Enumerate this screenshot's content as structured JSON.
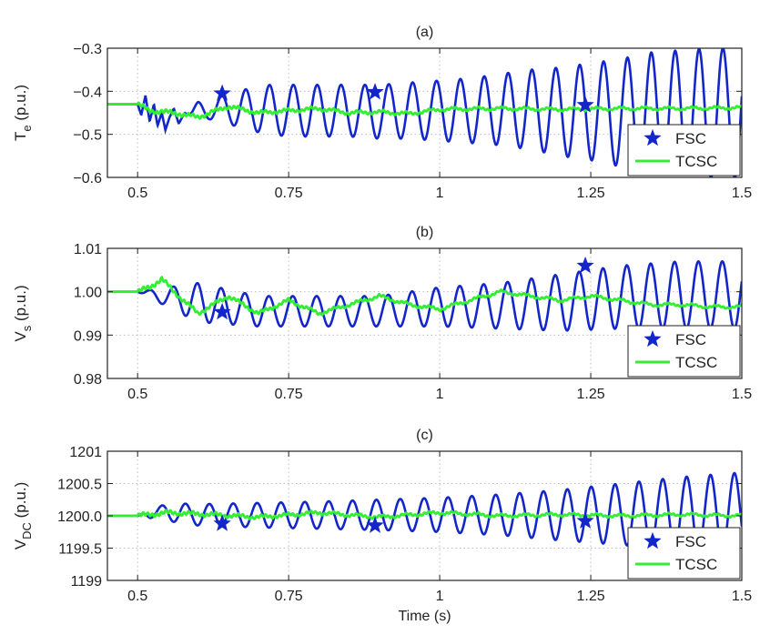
{
  "colors": {
    "fsc": "#1326c9",
    "tcsc": "#33ee33",
    "axis": "#222222",
    "grid": "#bdbdbd"
  },
  "chart_data": [
    {
      "type": "line",
      "title": "(a)",
      "ylabel_main": "T",
      "ylabel_sub": "e",
      "ylabel_rest": " (p.u.)",
      "xlim": [
        0.45,
        1.5
      ],
      "ylim": [
        -0.6,
        -0.3
      ],
      "xticks": [
        0.5,
        0.75,
        1,
        1.25,
        1.5
      ],
      "xtick_labels": [
        "0.5",
        "0.75",
        "1",
        "1.25",
        "1.5"
      ],
      "yticks": [
        -0.6,
        -0.5,
        -0.4,
        -0.3
      ],
      "ytick_labels": [
        "−0.6",
        "−0.5",
        "−0.4",
        "−0.3"
      ],
      "grid": true,
      "legend_position": "bottom-right",
      "fsc_markers": [
        [
          0.64,
          -0.405
        ],
        [
          0.893,
          -0.402
        ],
        [
          1.241,
          -0.432
        ]
      ],
      "series": [
        {
          "name": "FSC",
          "x": [
            0.45,
            0.5,
            0.506,
            0.513,
            0.52,
            0.527,
            0.533,
            0.54,
            0.546,
            0.553,
            0.56,
            0.568,
            0.578,
            0.6,
            0.618,
            0.64,
            0.66,
            0.68,
            0.7,
            0.72,
            0.75,
            0.8,
            0.85,
            0.9,
            0.95,
            1.0,
            1.05,
            1.1,
            1.15,
            1.2,
            1.25,
            1.3,
            1.35,
            1.4,
            1.45,
            1.5
          ],
          "y": [
            -0.43,
            -0.43,
            -0.455,
            -0.41,
            -0.47,
            -0.43,
            -0.48,
            -0.45,
            -0.49,
            -0.46,
            -0.44,
            -0.475,
            -0.45,
            -0.47,
            -0.465,
            -0.47,
            -0.48,
            -0.49,
            -0.495,
            -0.5,
            -0.505,
            -0.505,
            -0.505,
            -0.51,
            -0.51,
            -0.515,
            -0.52,
            -0.525,
            -0.535,
            -0.55,
            -0.56,
            -0.575,
            -0.585,
            -0.59,
            -0.6,
            -0.6
          ],
          "y_upper": [
            -0.43,
            -0.43,
            -0.455,
            -0.41,
            -0.47,
            -0.43,
            -0.48,
            -0.45,
            -0.49,
            -0.46,
            -0.44,
            -0.475,
            -0.45,
            -0.425,
            -0.42,
            -0.41,
            -0.405,
            -0.395,
            -0.39,
            -0.385,
            -0.385,
            -0.385,
            -0.385,
            -0.385,
            -0.38,
            -0.375,
            -0.37,
            -0.36,
            -0.35,
            -0.345,
            -0.335,
            -0.325,
            -0.31,
            -0.305,
            -0.3,
            -0.3
          ],
          "period_s": 0.0395,
          "osc_start_s": 0.58
        },
        {
          "name": "TCSC",
          "x": [
            0.45,
            0.5,
            0.52,
            0.56,
            0.6,
            0.65,
            0.7,
            0.75,
            0.8,
            0.85,
            0.9,
            0.95,
            1.0,
            1.1,
            1.2,
            1.3,
            1.4,
            1.5
          ],
          "y": [
            -0.43,
            -0.43,
            -0.445,
            -0.45,
            -0.46,
            -0.435,
            -0.45,
            -0.445,
            -0.44,
            -0.45,
            -0.448,
            -0.452,
            -0.442,
            -0.44,
            -0.442,
            -0.44,
            -0.44,
            -0.438
          ]
        }
      ]
    },
    {
      "type": "line",
      "title": "(b)",
      "ylabel_main": "V",
      "ylabel_sub": "s",
      "ylabel_rest": " (p.u.)",
      "xlim": [
        0.45,
        1.5
      ],
      "ylim": [
        0.98,
        1.01
      ],
      "xticks": [
        0.5,
        0.75,
        1,
        1.25,
        1.5
      ],
      "xtick_labels": [
        "0.5",
        "0.75",
        "1",
        "1.25",
        "1.5"
      ],
      "yticks": [
        0.98,
        0.99,
        1.0,
        1.01
      ],
      "ytick_labels": [
        "0.98",
        "0.99",
        "1.00",
        "1.01"
      ],
      "grid": true,
      "legend_position": "bottom-right",
      "fsc_markers": [
        [
          0.64,
          0.9953
        ],
        [
          1.241,
          1.006
        ]
      ],
      "series": [
        {
          "name": "FSC",
          "x": [
            0.45,
            0.5,
            0.6,
            0.7,
            0.8,
            0.9,
            1.0,
            1.1,
            1.2,
            1.3,
            1.4,
            1.5
          ],
          "y": [
            1.0,
            1.0,
            0.993,
            0.992,
            0.992,
            0.992,
            0.992,
            0.9915,
            0.991,
            0.9915,
            0.9915,
            0.9915
          ],
          "y_upper": [
            1.0,
            1.0,
            1.002,
            0.999,
            0.999,
            0.999,
            1.001,
            1.002,
            1.004,
            1.006,
            1.007,
            1.007
          ],
          "period_s": 0.0395,
          "osc_start_s": 0.5
        },
        {
          "name": "TCSC",
          "x": [
            0.45,
            0.5,
            0.52,
            0.54,
            0.56,
            0.6,
            0.65,
            0.7,
            0.75,
            0.8,
            0.85,
            0.9,
            0.95,
            1.0,
            1.05,
            1.1,
            1.15,
            1.2,
            1.25,
            1.3,
            1.35,
            1.4,
            1.45,
            1.5
          ],
          "y": [
            1.0,
            1.0,
            1.001,
            1.003,
            1.0,
            0.995,
            0.999,
            0.995,
            0.998,
            0.995,
            0.997,
            0.999,
            0.997,
            0.996,
            0.998,
            1.0,
            0.999,
            0.998,
            0.999,
            0.998,
            0.997,
            0.997,
            0.9965,
            0.9965
          ]
        }
      ]
    },
    {
      "type": "line",
      "title": "(c)",
      "ylabel_main": "V",
      "ylabel_sub": "DC",
      "ylabel_rest": " (p.u.)",
      "xlabel": "Time (s)",
      "xlim": [
        0.45,
        1.5
      ],
      "ylim": [
        1199,
        1201
      ],
      "xticks": [
        0.5,
        0.75,
        1,
        1.25,
        1.5
      ],
      "xtick_labels": [
        "0.5",
        "0.75",
        "1",
        "1.25",
        "1.5"
      ],
      "yticks": [
        1199,
        1199.5,
        1200,
        1200.5,
        1201
      ],
      "ytick_labels": [
        "1199",
        "1199.5",
        "1200.0",
        "1200.5",
        "1201"
      ],
      "grid": true,
      "legend_position": "bottom-right",
      "fsc_markers": [
        [
          0.64,
          1199.88
        ],
        [
          0.893,
          1199.85
        ],
        [
          1.241,
          1199.92
        ]
      ],
      "series": [
        {
          "name": "FSC",
          "x": [
            0.45,
            0.5,
            0.55,
            0.6,
            0.7,
            0.8,
            0.9,
            1.0,
            1.1,
            1.2,
            1.3,
            1.4,
            1.5
          ],
          "y": [
            1200.0,
            1200.0,
            1199.92,
            1199.85,
            1199.82,
            1199.8,
            1199.78,
            1199.75,
            1199.7,
            1199.62,
            1199.55,
            1199.48,
            1199.45
          ],
          "y_upper": [
            1200.0,
            1200.0,
            1200.2,
            1200.18,
            1200.2,
            1200.22,
            1200.25,
            1200.28,
            1200.33,
            1200.4,
            1200.5,
            1200.6,
            1200.67
          ],
          "period_s": 0.0395,
          "osc_start_s": 0.52
        },
        {
          "name": "TCSC",
          "x": [
            0.45,
            0.5,
            0.55,
            0.6,
            0.7,
            0.8,
            0.9,
            1.0,
            1.1,
            1.2,
            1.3,
            1.4,
            1.5
          ],
          "y": [
            1200.0,
            1200.0,
            1200.05,
            1200.03,
            1199.98,
            1200.05,
            1199.98,
            1200.05,
            1200.0,
            1200.02,
            1200.0,
            1200.02,
            1200.0
          ]
        }
      ]
    }
  ]
}
